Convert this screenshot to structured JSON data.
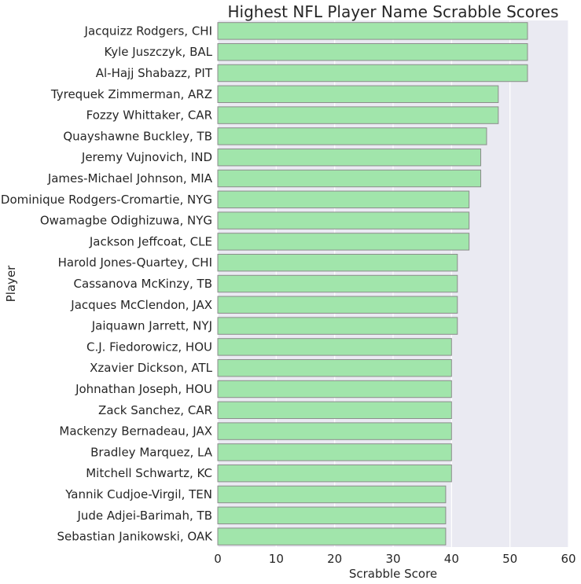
{
  "chart_data": {
    "type": "bar",
    "orientation": "horizontal",
    "title": "Highest NFL Player Name Scrabble Scores",
    "xlabel": "Scrabble Score",
    "ylabel": "Player",
    "xlim": [
      0,
      60
    ],
    "xticks": [
      "0",
      "10",
      "20",
      "30",
      "40",
      "50",
      "60"
    ],
    "grid": true,
    "categories": [
      "Jacquizz Rodgers, CHI",
      "Kyle Juszczyk, BAL",
      "Al-Hajj Shabazz, PIT",
      "Tyrequek Zimmerman, ARZ",
      "Fozzy Whittaker, CAR",
      "Quayshawne Buckley, TB",
      "Jeremy Vujnovich, IND",
      "James-Michael Johnson, MIA",
      "Dominique Rodgers-Cromartie, NYG",
      "Owamagbe Odighizuwa, NYG",
      "Jackson Jeffcoat, CLE",
      "Harold Jones-Quartey, CHI",
      "Cassanova McKinzy, TB",
      "Jacques McClendon, JAX",
      "Jaiquawn Jarrett, NYJ",
      "C.J. Fiedorowicz, HOU",
      "Xzavier Dickson, ATL",
      "Johnathan Joseph, HOU",
      "Zack Sanchez, CAR",
      "Mackenzy Bernadeau, JAX",
      "Bradley Marquez, LA",
      "Mitchell Schwartz, KC",
      "Yannik Cudjoe-Virgil, TEN",
      "Jude Adjei-Barimah, TB",
      "Sebastian Janikowski, OAK"
    ],
    "values": [
      53,
      53,
      53,
      48,
      48,
      46,
      45,
      45,
      43,
      43,
      43,
      41,
      41,
      41,
      41,
      40,
      40,
      40,
      40,
      40,
      40,
      40,
      39,
      39,
      39
    ],
    "colors": {
      "background": "#EAEAF2",
      "bar_fill": "#A1E5AB",
      "bar_stroke": "#8C8C8C",
      "grid": "#FFFFFF",
      "text": "#262626"
    }
  }
}
